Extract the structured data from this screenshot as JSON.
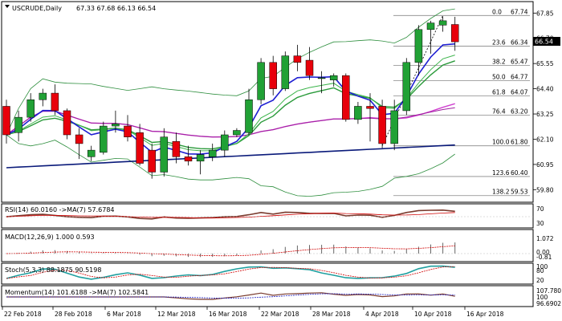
{
  "header": {
    "symbol": "USCRUDE,Daily",
    "ohlc": "67.33 67.68 66.13 66.54"
  },
  "price_tag": {
    "value": "66.54",
    "bg": "#000000"
  },
  "colors": {
    "bull": "#21a135",
    "bear": "#e8000b",
    "ma_blue": "#1f1fd2",
    "ma_navy": "#0a1a7a",
    "ma_green": "#2a9a3a",
    "ma_lightgreen": "#3cb44b",
    "ma_magenta": "#d040d0",
    "ma_purple": "#a020a0",
    "band": "#2f8f3f",
    "fib_line": "#888888",
    "rsi_ma": "#d00000",
    "macd_signal": "#d00000",
    "stoch_main": "#20a0a0",
    "stoch_signal": "#d00000",
    "momentum_ma": "#2020c0"
  },
  "x_axis": {
    "labels": [
      "22 Feb 2018",
      "28 Feb 2018",
      "6 Mar 2018",
      "12 Mar 2018",
      "16 Mar 2018",
      "22 Mar 2018",
      "28 Mar 2018",
      "4 Apr 2018",
      "10 Apr 2018",
      "16 Apr 2018"
    ]
  },
  "main_panel": {
    "y_labels": [
      "67.85",
      "66.70",
      "65.55",
      "64.40",
      "63.25",
      "62.10",
      "60.95",
      "59.80"
    ],
    "fib_levels": [
      {
        "ratio": "0.0",
        "price": "67.74"
      },
      {
        "ratio": "23.6",
        "price": "66.34"
      },
      {
        "ratio": "38.2",
        "price": "65.47"
      },
      {
        "ratio": "50.0",
        "price": "64.77"
      },
      {
        "ratio": "61.8",
        "price": "64.07"
      },
      {
        "ratio": "76.4",
        "price": "63.20"
      },
      {
        "ratio": "100.0",
        "price": "61.80"
      },
      {
        "ratio": "123.6",
        "price": "60.40"
      },
      {
        "ratio": "138.2",
        "price": "59.53"
      }
    ]
  },
  "rsi_panel": {
    "label": "RSI(14) 60.0160 ->MA(7) 57.6784",
    "y_labels": [
      "70",
      "30"
    ]
  },
  "macd_panel": {
    "label": "MACD(12,26,9) 1.000 0.593",
    "y_labels": [
      "1.072",
      "0.00",
      "-0.81"
    ]
  },
  "stoch_panel": {
    "label": "Stoch(5,3,3) 88.1875 90.5198",
    "y_labels": [
      "100",
      "80",
      "20"
    ]
  },
  "momentum_panel": {
    "label": "Momentum(14) 101.6188 ->MA(7) 102.5841",
    "y_labels": [
      "107.780",
      "100",
      "96.6902"
    ]
  },
  "chart_data": {
    "type": "candlestick",
    "title": "USCRUDE,Daily",
    "ylim": [
      59.3,
      68.3
    ],
    "candles": [
      {
        "o": 63.6,
        "h": 63.9,
        "l": 61.9,
        "c": 62.3
      },
      {
        "o": 62.4,
        "h": 63.4,
        "l": 62.0,
        "c": 63.1
      },
      {
        "o": 63.1,
        "h": 64.2,
        "l": 62.9,
        "c": 63.9
      },
      {
        "o": 63.9,
        "h": 64.4,
        "l": 63.6,
        "c": 64.2
      },
      {
        "o": 64.2,
        "h": 64.6,
        "l": 63.2,
        "c": 63.4
      },
      {
        "o": 63.4,
        "h": 63.5,
        "l": 62.1,
        "c": 62.3
      },
      {
        "o": 62.3,
        "h": 62.6,
        "l": 61.2,
        "c": 61.9
      },
      {
        "o": 61.3,
        "h": 61.8,
        "l": 61.1,
        "c": 61.6
      },
      {
        "o": 61.5,
        "h": 62.9,
        "l": 61.4,
        "c": 62.7
      },
      {
        "o": 62.7,
        "h": 63.4,
        "l": 62.4,
        "c": 62.8
      },
      {
        "o": 62.7,
        "h": 63.2,
        "l": 62.0,
        "c": 62.2
      },
      {
        "o": 62.4,
        "h": 62.8,
        "l": 60.9,
        "c": 61.0
      },
      {
        "o": 61.6,
        "h": 61.9,
        "l": 60.3,
        "c": 60.6
      },
      {
        "o": 60.6,
        "h": 62.6,
        "l": 60.4,
        "c": 62.2
      },
      {
        "o": 62.0,
        "h": 62.4,
        "l": 61.0,
        "c": 61.3
      },
      {
        "o": 61.3,
        "h": 61.8,
        "l": 60.9,
        "c": 61.1
      },
      {
        "o": 61.1,
        "h": 61.6,
        "l": 60.5,
        "c": 61.4
      },
      {
        "o": 61.3,
        "h": 61.9,
        "l": 61.1,
        "c": 61.6
      },
      {
        "o": 61.6,
        "h": 62.5,
        "l": 61.3,
        "c": 62.3
      },
      {
        "o": 62.3,
        "h": 62.6,
        "l": 62.2,
        "c": 62.5
      },
      {
        "o": 62.4,
        "h": 64.4,
        "l": 62.3,
        "c": 63.9
      },
      {
        "o": 63.9,
        "h": 65.8,
        "l": 63.7,
        "c": 65.6
      },
      {
        "o": 65.6,
        "h": 65.9,
        "l": 64.1,
        "c": 64.4
      },
      {
        "o": 64.4,
        "h": 66.1,
        "l": 64.3,
        "c": 65.9
      },
      {
        "o": 65.9,
        "h": 66.4,
        "l": 65.2,
        "c": 65.6
      },
      {
        "o": 65.7,
        "h": 66.3,
        "l": 64.8,
        "c": 65.0
      },
      {
        "o": 64.9,
        "h": 65.2,
        "l": 64.2,
        "c": 64.9
      },
      {
        "o": 64.8,
        "h": 65.1,
        "l": 64.5,
        "c": 65.0
      },
      {
        "o": 65.0,
        "h": 65.1,
        "l": 62.9,
        "c": 63.0
      },
      {
        "o": 63.0,
        "h": 63.8,
        "l": 62.8,
        "c": 63.6
      },
      {
        "o": 63.6,
        "h": 64.2,
        "l": 62.0,
        "c": 63.5
      },
      {
        "o": 63.6,
        "h": 63.9,
        "l": 61.7,
        "c": 61.9
      },
      {
        "o": 61.9,
        "h": 63.9,
        "l": 61.6,
        "c": 63.4
      },
      {
        "o": 63.4,
        "h": 65.8,
        "l": 63.2,
        "c": 65.6
      },
      {
        "o": 65.6,
        "h": 67.3,
        "l": 65.0,
        "c": 67.1
      },
      {
        "o": 67.1,
        "h": 67.5,
        "l": 66.0,
        "c": 67.4
      },
      {
        "o": 67.3,
        "h": 67.7,
        "l": 67.0,
        "c": 67.5
      },
      {
        "o": 67.33,
        "h": 67.68,
        "l": 66.13,
        "c": 66.54
      }
    ]
  }
}
